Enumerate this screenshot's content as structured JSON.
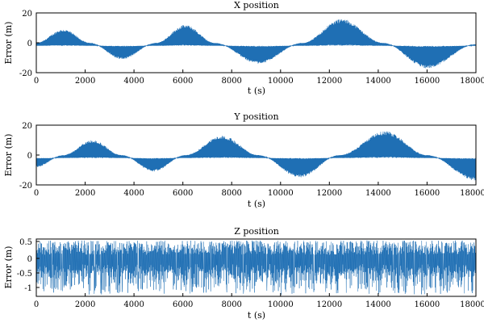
{
  "chart_data": [
    {
      "type": "line",
      "title": "X position",
      "xlabel": "t (s)",
      "ylabel": "Error (m)",
      "xlim": [
        0,
        18000
      ],
      "ylim": [
        -20,
        20
      ],
      "xticks": [
        0,
        2000,
        4000,
        6000,
        8000,
        10000,
        12000,
        14000,
        16000,
        18000
      ],
      "yticks": [
        -20,
        0,
        20
      ],
      "grid": false,
      "series": [
        {
          "color": "#1f6fb4",
          "baseline": -2,
          "description_of_shape": "oscillating envelope, alternating positive and negative half-cycles",
          "envelope_points": [
            {
              "t": 0,
              "e": 0
            },
            {
              "t": 1100,
              "e": 9
            },
            {
              "t": 2200,
              "e": 0
            },
            {
              "t": 3500,
              "e": -11
            },
            {
              "t": 4900,
              "e": 0
            },
            {
              "t": 6100,
              "e": 12
            },
            {
              "t": 7300,
              "e": 0
            },
            {
              "t": 9100,
              "e": -14
            },
            {
              "t": 10900,
              "e": 0
            },
            {
              "t": 12500,
              "e": 16
            },
            {
              "t": 14200,
              "e": 0
            },
            {
              "t": 16000,
              "e": -17
            },
            {
              "t": 18000,
              "e": -1
            }
          ]
        }
      ]
    },
    {
      "type": "line",
      "title": "Y position",
      "xlabel": "t (s)",
      "ylabel": "Error (m)",
      "xlim": [
        0,
        18000
      ],
      "ylim": [
        -20,
        20
      ],
      "xticks": [
        0,
        2000,
        4000,
        6000,
        8000,
        10000,
        12000,
        14000,
        16000,
        18000
      ],
      "yticks": [
        -20,
        0,
        20
      ],
      "grid": false,
      "series": [
        {
          "color": "#1f6fb4",
          "baseline": -2,
          "envelope_points": [
            {
              "t": 0,
              "e": -8
            },
            {
              "t": 1100,
              "e": 0
            },
            {
              "t": 2300,
              "e": 10
            },
            {
              "t": 3500,
              "e": 0
            },
            {
              "t": 4800,
              "e": -11
            },
            {
              "t": 6100,
              "e": 0
            },
            {
              "t": 7600,
              "e": 13
            },
            {
              "t": 9100,
              "e": 0
            },
            {
              "t": 10800,
              "e": -15
            },
            {
              "t": 12400,
              "e": 0
            },
            {
              "t": 14300,
              "e": 16
            },
            {
              "t": 16000,
              "e": 0
            },
            {
              "t": 18000,
              "e": -17
            }
          ]
        }
      ]
    },
    {
      "type": "line",
      "title": "Z position",
      "xlabel": "t (s)",
      "ylabel": "Error (m)",
      "xlim": [
        0,
        18000
      ],
      "ylim": [
        -1.25,
        0.75
      ],
      "xticks": [
        0,
        2000,
        4000,
        6000,
        8000,
        10000,
        12000,
        14000,
        16000,
        18000
      ],
      "yticks": [
        -1,
        -0.5,
        0,
        0.5
      ],
      "grid": false,
      "series": [
        {
          "color": "#1f6fb4",
          "noise_range": [
            -1.2,
            0.7
          ],
          "envelope_points": [
            {
              "t": 0,
              "e": 0
            },
            {
              "t": 18000,
              "e": 0
            }
          ]
        }
      ]
    }
  ]
}
